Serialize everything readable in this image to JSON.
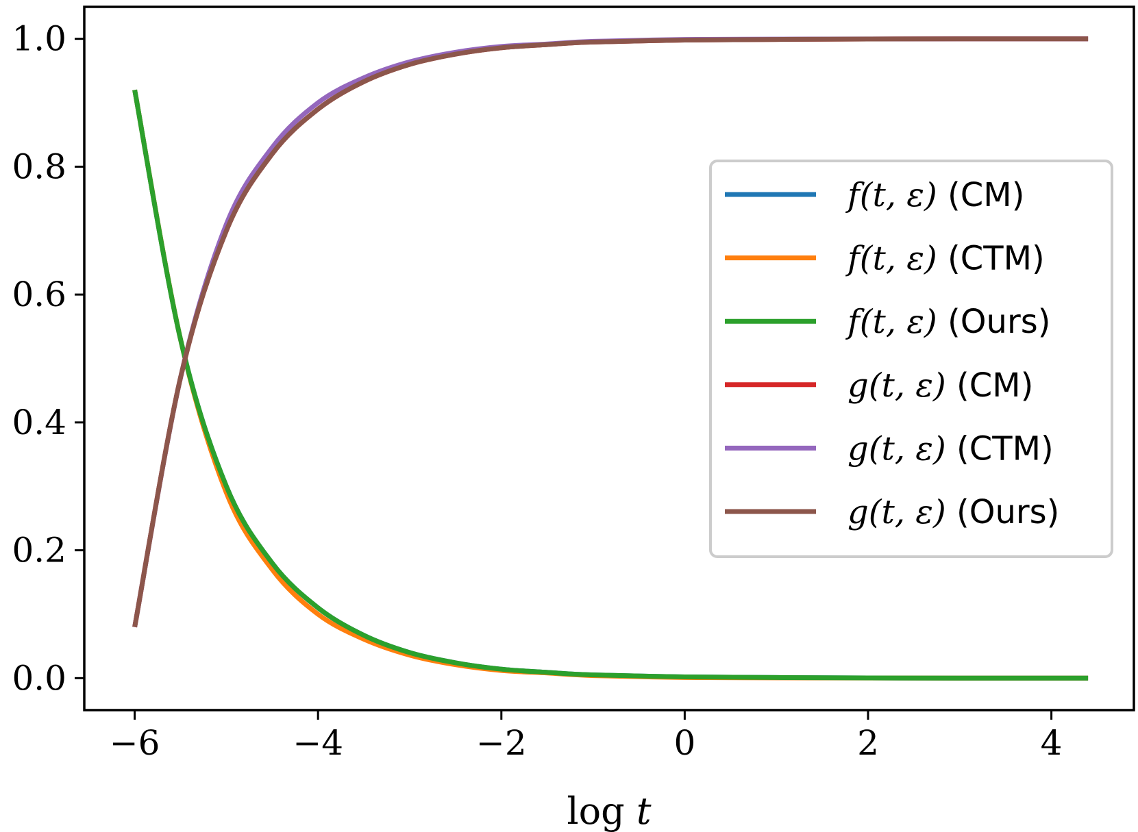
{
  "chart_data": {
    "type": "line",
    "xlabel": "log t",
    "ylabel": "",
    "title": "",
    "xlim": [
      -6.55,
      4.9
    ],
    "ylim": [
      -0.05,
      1.05
    ],
    "xticks": [
      -6,
      -4,
      -2,
      0,
      2,
      4
    ],
    "xtick_labels": [
      "−6",
      "−4",
      "−2",
      "0",
      "2",
      "4"
    ],
    "yticks": [
      0.0,
      0.2,
      0.4,
      0.6,
      0.8,
      1.0
    ],
    "ytick_labels": [
      "0.0",
      "0.2",
      "0.4",
      "0.6",
      "0.8",
      "1.0"
    ],
    "grid": false,
    "legend_position": "center-right",
    "x": [
      -6.0,
      -5.5,
      -5.0,
      -4.5,
      -4.0,
      -3.5,
      -3.0,
      -2.5,
      -2.0,
      -1.5,
      -1.0,
      0.0,
      1.0,
      2.0,
      3.0,
      4.4
    ],
    "series": [
      {
        "name": "f(t, ε) (CM)",
        "math": "f(t, ε)",
        "suffix": "(CM)",
        "color": "#1f77b4",
        "values": [
          0.92,
          0.53,
          0.3,
          0.18,
          0.11,
          0.067,
          0.04,
          0.024,
          0.014,
          0.009,
          0.005,
          0.002,
          0.001,
          0.0003,
          0.0001,
          0.0
        ]
      },
      {
        "name": "f(t, ε) (CTM)",
        "math": "f(t, ε)",
        "suffix": "(CTM)",
        "color": "#ff7f0e",
        "values": [
          0.92,
          0.53,
          0.29,
          0.17,
          0.1,
          0.061,
          0.036,
          0.021,
          0.012,
          0.008,
          0.004,
          0.001,
          0.0005,
          0.0002,
          0.0001,
          0.0
        ]
      },
      {
        "name": "f(t, ε) (Ours)",
        "math": "f(t, ε)",
        "suffix": "(Ours)",
        "color": "#2ca02c",
        "values": [
          0.92,
          0.53,
          0.3,
          0.18,
          0.11,
          0.067,
          0.04,
          0.024,
          0.014,
          0.009,
          0.005,
          0.002,
          0.001,
          0.0003,
          0.0001,
          0.0
        ]
      },
      {
        "name": "g(t, ε) (CM)",
        "math": "g(t, ε)",
        "suffix": "(CM)",
        "color": "#d62728",
        "values": [
          0.08,
          0.47,
          0.7,
          0.82,
          0.89,
          0.933,
          0.96,
          0.976,
          0.986,
          0.991,
          0.995,
          0.998,
          0.999,
          0.9997,
          0.9999,
          1.0
        ]
      },
      {
        "name": "g(t, ε) (CTM)",
        "math": "g(t, ε)",
        "suffix": "(CTM)",
        "color": "#9467bd",
        "values": [
          0.08,
          0.47,
          0.71,
          0.83,
          0.9,
          0.939,
          0.964,
          0.979,
          0.988,
          0.992,
          0.996,
          0.999,
          0.9995,
          0.9998,
          0.9999,
          1.0
        ]
      },
      {
        "name": "g(t, ε) (Ours)",
        "math": "g(t, ε)",
        "suffix": "(Ours)",
        "color": "#8c564b",
        "values": [
          0.08,
          0.47,
          0.7,
          0.82,
          0.89,
          0.933,
          0.96,
          0.976,
          0.986,
          0.991,
          0.995,
          0.998,
          0.999,
          0.9997,
          0.9999,
          1.0
        ]
      }
    ]
  }
}
